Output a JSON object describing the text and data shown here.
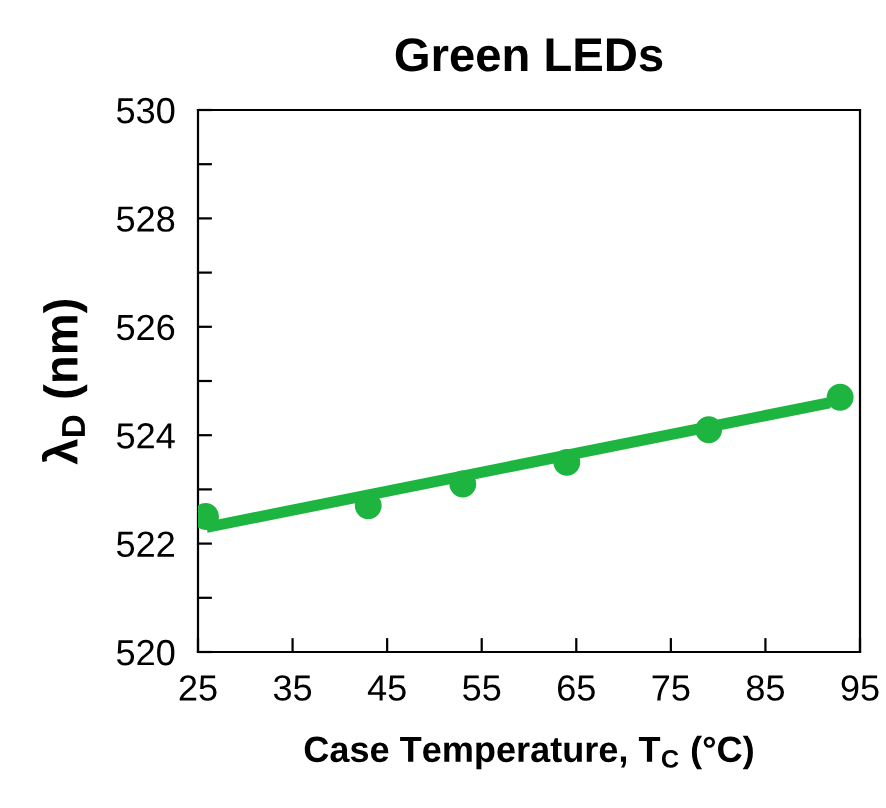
{
  "chart_data": {
    "type": "scatter",
    "title": "Green LEDs",
    "xlabel": "Case Temperature, T$_{C}$ (°C)",
    "ylabel": "λ$_{D}$ (nm)",
    "series": [
      {
        "color": "#1db540",
        "x": [
          25.8,
          43.0,
          53.0,
          64.0,
          79.0,
          92.9
        ],
        "values": [
          522.5,
          522.7,
          523.1,
          523.5,
          524.1,
          524.7
        ],
        "marker": "circle"
      },
      {
        "type": "line",
        "color": "#1db540",
        "x": [
          25.9,
          91.8
        ],
        "values": [
          522.3,
          524.6
        ],
        "marker": "none",
        "line_style": "solid"
      }
    ],
    "xlim": [
      25,
      95
    ],
    "xticks": [
      25,
      35,
      45,
      55,
      65,
      75,
      85,
      95
    ],
    "ylim": [
      520,
      530
    ],
    "yticks": [
      520,
      {
        "value": 521,
        "label": null
      },
      522,
      {
        "value": 523,
        "label": null
      },
      524,
      {
        "value": 525,
        "label": null
      },
      526,
      {
        "value": 527,
        "label": null
      },
      528,
      {
        "value": 529,
        "label": null
      },
      530
    ],
    "grid": false,
    "legend": false
  }
}
